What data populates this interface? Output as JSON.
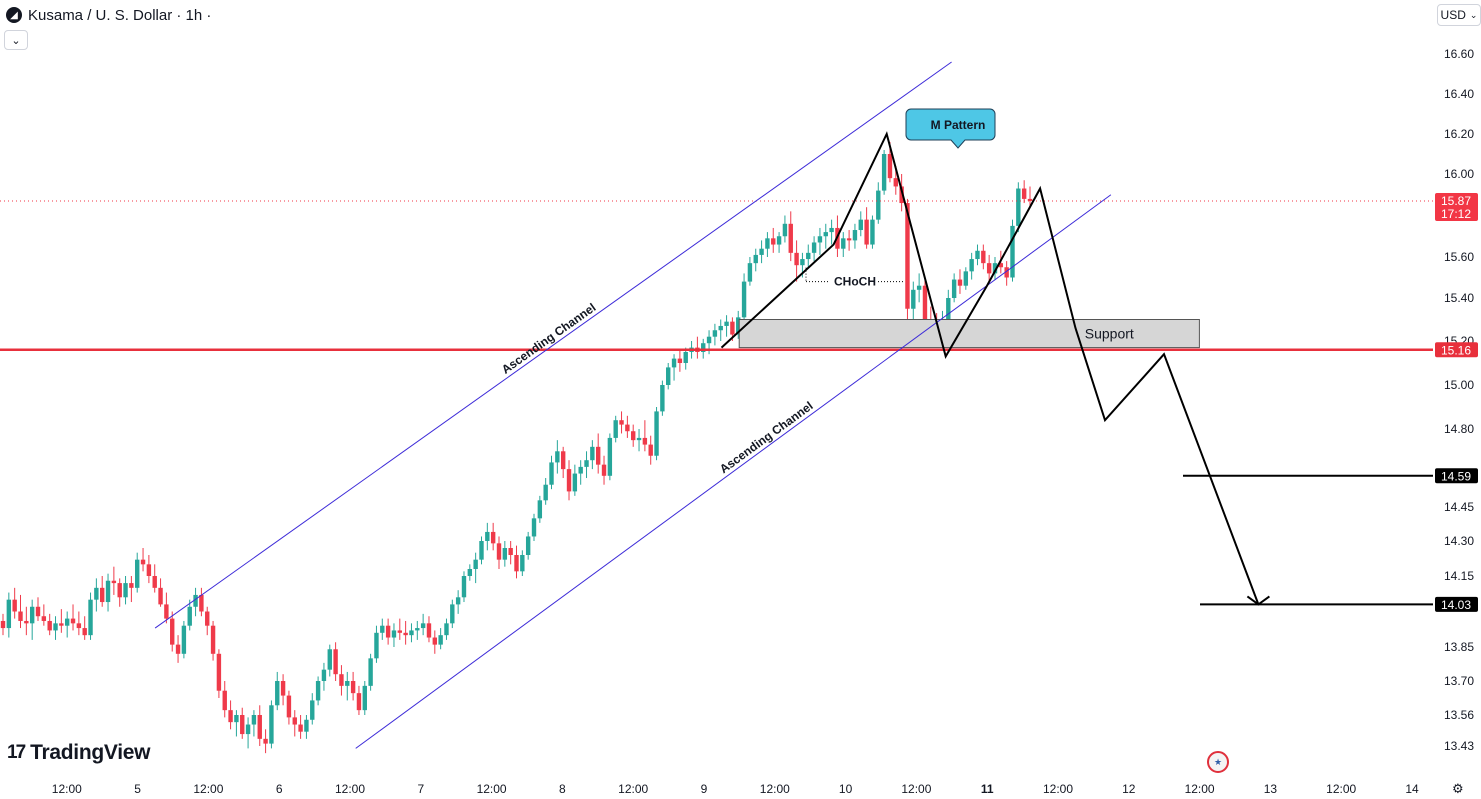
{
  "header": {
    "title": "Kusama / U. S. Dollar · 1h ·",
    "currency_button": "USD",
    "collapse_icon": "chevron-down-icon",
    "brand": "TradingView"
  },
  "colors": {
    "up": "#26a69a",
    "down": "#ef3a4a",
    "channel": "#3d2bd8",
    "support_line": "#e8303c",
    "support_zone": "#d6d6d6",
    "pattern_bubble": "#4ec7e6",
    "path": "#000000",
    "price_marker": "#f23645"
  },
  "chart_data": {
    "type": "candlestick",
    "symbol": "Kusama / U. S. Dollar",
    "interval": "1h",
    "y_axis": {
      "ticks": [
        "16.60",
        "16.40",
        "16.20",
        "16.00",
        "15.60",
        "15.40",
        "15.20",
        "15.00",
        "14.80",
        "14.45",
        "14.30",
        "14.15",
        "13.85",
        "13.70",
        "13.56",
        "13.43"
      ]
    },
    "x_axis": {
      "ticks": [
        "12:00",
        "5",
        "12:00",
        "6",
        "12:00",
        "7",
        "12:00",
        "8",
        "12:00",
        "9",
        "12:00",
        "10",
        "12:00",
        "11",
        "12:00",
        "12",
        "12:00",
        "13",
        "12:00",
        "14"
      ]
    },
    "current_price": {
      "value": "15.87",
      "countdown": "17:12"
    },
    "price_labels": [
      {
        "value": "15.16",
        "kind": "support"
      },
      {
        "value": "14.59",
        "kind": "target"
      },
      {
        "value": "14.03",
        "kind": "target"
      }
    ],
    "annotations": {
      "channel_upper_label": "Ascending Channel",
      "channel_lower_label": "Ascending Channel",
      "pattern_label": "M Pattern",
      "choch_label": "CHoCH",
      "support_label": "Support"
    },
    "candles_ohlc": [
      [
        13.96,
        13.99,
        13.9,
        13.93
      ],
      [
        13.93,
        14.08,
        13.89,
        14.05
      ],
      [
        14.05,
        14.1,
        13.97,
        14.0
      ],
      [
        14.0,
        14.07,
        13.93,
        13.96
      ],
      [
        13.96,
        14.02,
        13.9,
        13.95
      ],
      [
        13.95,
        14.05,
        13.88,
        14.02
      ],
      [
        14.02,
        14.06,
        13.96,
        13.98
      ],
      [
        13.98,
        14.03,
        13.94,
        13.96
      ],
      [
        13.96,
        13.99,
        13.9,
        13.92
      ],
      [
        13.92,
        13.98,
        13.88,
        13.95
      ],
      [
        13.95,
        14.01,
        13.91,
        13.94
      ],
      [
        13.94,
        14.0,
        13.89,
        13.97
      ],
      [
        13.97,
        14.03,
        13.92,
        13.95
      ],
      [
        13.95,
        14.0,
        13.9,
        13.93
      ],
      [
        13.93,
        13.98,
        13.88,
        13.9
      ],
      [
        13.9,
        14.08,
        13.88,
        14.05
      ],
      [
        14.05,
        14.14,
        14.0,
        14.1
      ],
      [
        14.1,
        14.15,
        14.02,
        14.04
      ],
      [
        14.04,
        14.16,
        14.0,
        14.13
      ],
      [
        14.13,
        14.19,
        14.07,
        14.12
      ],
      [
        14.12,
        14.14,
        14.02,
        14.06
      ],
      [
        14.06,
        14.15,
        14.03,
        14.12
      ],
      [
        14.12,
        14.15,
        14.04,
        14.1
      ],
      [
        14.1,
        14.25,
        14.08,
        14.22
      ],
      [
        14.22,
        14.27,
        14.17,
        14.2
      ],
      [
        14.2,
        14.24,
        14.12,
        14.15
      ],
      [
        14.15,
        14.2,
        14.08,
        14.1
      ],
      [
        14.1,
        14.14,
        14.02,
        14.03
      ],
      [
        14.03,
        14.08,
        13.95,
        13.97
      ],
      [
        13.97,
        14.0,
        13.83,
        13.86
      ],
      [
        13.86,
        13.9,
        13.78,
        13.82
      ],
      [
        13.82,
        13.96,
        13.8,
        13.94
      ],
      [
        13.94,
        14.05,
        13.92,
        14.02
      ],
      [
        14.02,
        14.1,
        13.98,
        14.07
      ],
      [
        14.07,
        14.1,
        13.98,
        14.0
      ],
      [
        14.0,
        14.02,
        13.9,
        13.94
      ],
      [
        13.94,
        13.96,
        13.79,
        13.82
      ],
      [
        13.82,
        13.84,
        13.63,
        13.66
      ],
      [
        13.66,
        13.7,
        13.55,
        13.58
      ],
      [
        13.58,
        13.62,
        13.5,
        13.53
      ],
      [
        13.53,
        13.58,
        13.47,
        13.56
      ],
      [
        13.56,
        13.59,
        13.46,
        13.48
      ],
      [
        13.48,
        13.55,
        13.42,
        13.52
      ],
      [
        13.52,
        13.58,
        13.47,
        13.56
      ],
      [
        13.56,
        13.6,
        13.43,
        13.46
      ],
      [
        13.46,
        13.5,
        13.4,
        13.44
      ],
      [
        13.44,
        13.62,
        13.42,
        13.6
      ],
      [
        13.6,
        13.74,
        13.58,
        13.7
      ],
      [
        13.7,
        13.73,
        13.6,
        13.64
      ],
      [
        13.64,
        13.66,
        13.52,
        13.55
      ],
      [
        13.55,
        13.58,
        13.47,
        13.52
      ],
      [
        13.52,
        13.56,
        13.46,
        13.49
      ],
      [
        13.49,
        13.56,
        13.46,
        13.54
      ],
      [
        13.54,
        13.65,
        13.52,
        13.62
      ],
      [
        13.62,
        13.72,
        13.6,
        13.7
      ],
      [
        13.7,
        13.78,
        13.66,
        13.75
      ],
      [
        13.75,
        13.86,
        13.72,
        13.84
      ],
      [
        13.84,
        13.87,
        13.7,
        13.73
      ],
      [
        13.73,
        13.77,
        13.64,
        13.68
      ],
      [
        13.68,
        13.74,
        13.62,
        13.7
      ],
      [
        13.7,
        13.74,
        13.62,
        13.65
      ],
      [
        13.65,
        13.68,
        13.56,
        13.58
      ],
      [
        13.58,
        13.7,
        13.56,
        13.68
      ],
      [
        13.68,
        13.82,
        13.66,
        13.8
      ],
      [
        13.8,
        13.94,
        13.78,
        13.91
      ],
      [
        13.91,
        13.97,
        13.88,
        13.94
      ],
      [
        13.94,
        13.97,
        13.86,
        13.89
      ],
      [
        13.89,
        13.95,
        13.85,
        13.92
      ],
      [
        13.92,
        13.97,
        13.88,
        13.91
      ],
      [
        13.91,
        13.96,
        13.86,
        13.9
      ],
      [
        13.9,
        13.95,
        13.87,
        13.92
      ],
      [
        13.92,
        13.96,
        13.88,
        13.93
      ],
      [
        13.93,
        13.99,
        13.9,
        13.95
      ],
      [
        13.95,
        13.98,
        13.87,
        13.89
      ],
      [
        13.89,
        13.92,
        13.82,
        13.86
      ],
      [
        13.86,
        13.93,
        13.84,
        13.9
      ],
      [
        13.9,
        13.97,
        13.88,
        13.95
      ],
      [
        13.95,
        14.05,
        13.93,
        14.03
      ],
      [
        14.03,
        14.09,
        13.99,
        14.06
      ],
      [
        14.06,
        14.17,
        14.04,
        14.15
      ],
      [
        14.15,
        14.2,
        14.13,
        14.18
      ],
      [
        14.18,
        14.25,
        14.12,
        14.22
      ],
      [
        14.22,
        14.32,
        14.2,
        14.3
      ],
      [
        14.3,
        14.38,
        14.26,
        14.34
      ],
      [
        14.34,
        14.38,
        14.26,
        14.29
      ],
      [
        14.29,
        14.32,
        14.18,
        14.22
      ],
      [
        14.22,
        14.3,
        14.19,
        14.27
      ],
      [
        14.27,
        14.3,
        14.2,
        14.24
      ],
      [
        14.24,
        14.28,
        14.14,
        14.17
      ],
      [
        14.17,
        14.26,
        14.15,
        14.24
      ],
      [
        14.24,
        14.34,
        14.22,
        14.32
      ],
      [
        14.32,
        14.42,
        14.3,
        14.4
      ],
      [
        14.4,
        14.5,
        14.38,
        14.48
      ],
      [
        14.48,
        14.58,
        14.46,
        14.55
      ],
      [
        14.55,
        14.68,
        14.53,
        14.65
      ],
      [
        14.65,
        14.75,
        14.6,
        14.7
      ],
      [
        14.7,
        14.72,
        14.58,
        14.62
      ],
      [
        14.62,
        14.66,
        14.48,
        14.52
      ],
      [
        14.52,
        14.64,
        14.5,
        14.6
      ],
      [
        14.6,
        14.66,
        14.55,
        14.63
      ],
      [
        14.63,
        14.7,
        14.58,
        14.66
      ],
      [
        14.66,
        14.75,
        14.62,
        14.72
      ],
      [
        14.72,
        14.78,
        14.6,
        14.64
      ],
      [
        14.64,
        14.68,
        14.55,
        14.59
      ],
      [
        14.59,
        14.78,
        14.57,
        14.76
      ],
      [
        14.76,
        14.86,
        14.74,
        14.84
      ],
      [
        14.84,
        14.88,
        14.78,
        14.82
      ],
      [
        14.82,
        14.86,
        14.76,
        14.79
      ],
      [
        14.79,
        14.82,
        14.72,
        14.75
      ],
      [
        14.75,
        14.8,
        14.7,
        14.76
      ],
      [
        14.76,
        14.84,
        14.7,
        14.73
      ],
      [
        14.73,
        14.77,
        14.64,
        14.68
      ],
      [
        14.68,
        14.9,
        14.66,
        14.88
      ],
      [
        14.88,
        15.02,
        14.86,
        15.0
      ],
      [
        15.0,
        15.1,
        14.98,
        15.08
      ],
      [
        15.08,
        15.14,
        15.02,
        15.12
      ],
      [
        15.12,
        15.16,
        15.06,
        15.1
      ],
      [
        15.1,
        15.17,
        15.07,
        15.15
      ],
      [
        15.15,
        15.2,
        15.12,
        15.17
      ],
      [
        15.17,
        15.22,
        15.12,
        15.15
      ],
      [
        15.15,
        15.21,
        15.12,
        15.19
      ],
      [
        15.19,
        15.25,
        15.14,
        15.22
      ],
      [
        15.22,
        15.28,
        15.18,
        15.25
      ],
      [
        15.25,
        15.3,
        15.2,
        15.27
      ],
      [
        15.27,
        15.32,
        15.22,
        15.29
      ],
      [
        15.29,
        15.31,
        15.2,
        15.23
      ],
      [
        15.23,
        15.34,
        15.21,
        15.31
      ],
      [
        15.31,
        15.52,
        15.3,
        15.48
      ],
      [
        15.48,
        15.6,
        15.46,
        15.57
      ],
      [
        15.57,
        15.64,
        15.53,
        15.61
      ],
      [
        15.61,
        15.68,
        15.57,
        15.64
      ],
      [
        15.64,
        15.72,
        15.6,
        15.69
      ],
      [
        15.69,
        15.74,
        15.62,
        15.66
      ],
      [
        15.66,
        15.72,
        15.62,
        15.7
      ],
      [
        15.7,
        15.8,
        15.67,
        15.76
      ],
      [
        15.76,
        15.82,
        15.58,
        15.62
      ],
      [
        15.62,
        15.68,
        15.48,
        15.56
      ],
      [
        15.56,
        15.62,
        15.5,
        15.59
      ],
      [
        15.59,
        15.66,
        15.55,
        15.62
      ],
      [
        15.62,
        15.7,
        15.58,
        15.67
      ],
      [
        15.67,
        15.74,
        15.61,
        15.7
      ],
      [
        15.7,
        15.76,
        15.64,
        15.72
      ],
      [
        15.72,
        15.78,
        15.66,
        15.74
      ],
      [
        15.74,
        15.8,
        15.6,
        15.64
      ],
      [
        15.64,
        15.72,
        15.6,
        15.69
      ],
      [
        15.69,
        15.73,
        15.63,
        15.68
      ],
      [
        15.68,
        15.76,
        15.64,
        15.73
      ],
      [
        15.73,
        15.82,
        15.7,
        15.78
      ],
      [
        15.78,
        15.84,
        15.64,
        15.66
      ],
      [
        15.66,
        15.8,
        15.64,
        15.78
      ],
      [
        15.78,
        15.96,
        15.76,
        15.92
      ],
      [
        15.92,
        16.12,
        15.9,
        16.1
      ],
      [
        16.1,
        16.16,
        15.96,
        15.98
      ],
      [
        15.98,
        16.04,
        15.9,
        15.94
      ],
      [
        15.94,
        16.0,
        15.82,
        15.86
      ],
      [
        15.86,
        15.88,
        15.28,
        15.35
      ],
      [
        15.35,
        15.48,
        15.22,
        15.44
      ],
      [
        15.44,
        15.52,
        15.38,
        15.46
      ],
      [
        15.46,
        15.5,
        15.26,
        15.3
      ],
      [
        15.3,
        15.36,
        15.2,
        15.27
      ],
      [
        15.27,
        15.33,
        15.18,
        15.24
      ],
      [
        15.24,
        15.34,
        15.2,
        15.3
      ],
      [
        15.3,
        15.44,
        15.28,
        15.4
      ],
      [
        15.4,
        15.52,
        15.38,
        15.49
      ],
      [
        15.49,
        15.54,
        15.42,
        15.46
      ],
      [
        15.46,
        15.55,
        15.44,
        15.53
      ],
      [
        15.53,
        15.62,
        15.49,
        15.59
      ],
      [
        15.59,
        15.66,
        15.56,
        15.63
      ],
      [
        15.63,
        15.66,
        15.54,
        15.57
      ],
      [
        15.57,
        15.61,
        15.48,
        15.52
      ],
      [
        15.52,
        15.6,
        15.49,
        15.57
      ],
      [
        15.57,
        15.63,
        15.52,
        15.55
      ],
      [
        15.55,
        15.58,
        15.46,
        15.5
      ],
      [
        15.5,
        15.78,
        15.48,
        15.75
      ],
      [
        15.75,
        15.96,
        15.72,
        15.93
      ],
      [
        15.93,
        15.97,
        15.86,
        15.88
      ],
      [
        15.88,
        15.94,
        15.84,
        15.87
      ]
    ],
    "channel": {
      "upper": [
        [
          "5 03:00",
          13.93
        ],
        [
          "10 18:00",
          16.56
        ]
      ],
      "lower": [
        [
          "6 13:00",
          13.42
        ],
        [
          "11 21:00",
          15.9
        ]
      ]
    },
    "support_zone": {
      "from": "9 06:00",
      "to": "12 12:00",
      "low": 15.17,
      "high": 15.3
    },
    "support_line": 15.16,
    "targets": [
      14.59,
      14.03
    ],
    "projected_path": [
      [
        "9 03:00",
        15.17
      ],
      [
        "9 22:00",
        15.66
      ],
      [
        "10 07:00",
        16.2
      ],
      [
        "10 17:00",
        15.13
      ],
      [
        "11 00:00",
        15.46
      ],
      [
        "11 09:00",
        15.93
      ],
      [
        "11 15:00",
        15.26
      ],
      [
        "11 20:00",
        14.84
      ],
      [
        "12 06:00",
        15.14
      ],
      [
        "12 22:00",
        14.03
      ]
    ]
  }
}
